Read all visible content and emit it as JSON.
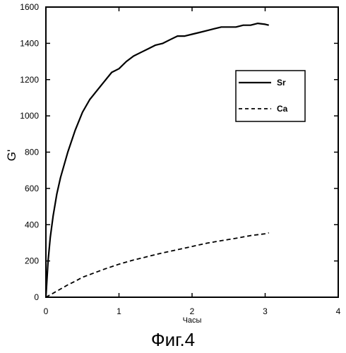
{
  "chart_data": {
    "type": "line",
    "xlabel": "Часы",
    "ylabel": "G'",
    "xlim": [
      0,
      4
    ],
    "ylim": [
      0,
      1600
    ],
    "xticks": [
      0,
      1,
      2,
      3,
      4
    ],
    "yticks": [
      0,
      200,
      400,
      600,
      800,
      1000,
      1200,
      1400,
      1600
    ],
    "grid": false,
    "legend_position": "right",
    "series": [
      {
        "name": "Sr",
        "style": "solid",
        "color": "#000000",
        "x": [
          0,
          0.03,
          0.06,
          0.1,
          0.15,
          0.2,
          0.3,
          0.4,
          0.5,
          0.6,
          0.7,
          0.8,
          0.9,
          1.0,
          1.1,
          1.2,
          1.3,
          1.4,
          1.5,
          1.6,
          1.7,
          1.8,
          1.9,
          2.0,
          2.1,
          2.2,
          2.3,
          2.4,
          2.5,
          2.6,
          2.7,
          2.8,
          2.9,
          3.0,
          3.05
        ],
        "values": [
          0,
          200,
          330,
          450,
          570,
          660,
          800,
          920,
          1020,
          1090,
          1140,
          1190,
          1240,
          1260,
          1300,
          1330,
          1350,
          1370,
          1390,
          1400,
          1420,
          1440,
          1440,
          1450,
          1460,
          1470,
          1480,
          1490,
          1490,
          1490,
          1500,
          1500,
          1510,
          1505,
          1500
        ]
      },
      {
        "name": "Ca",
        "style": "dashed",
        "color": "#000000",
        "x": [
          0,
          0.1,
          0.2,
          0.3,
          0.4,
          0.5,
          0.6,
          0.8,
          1.0,
          1.2,
          1.4,
          1.6,
          1.8,
          2.0,
          2.2,
          2.4,
          2.6,
          2.8,
          3.0,
          3.05
        ],
        "values": [
          0,
          22,
          45,
          68,
          88,
          110,
          125,
          155,
          182,
          205,
          225,
          245,
          262,
          280,
          298,
          312,
          325,
          340,
          350,
          355
        ]
      }
    ]
  },
  "caption": "Фиг.4"
}
